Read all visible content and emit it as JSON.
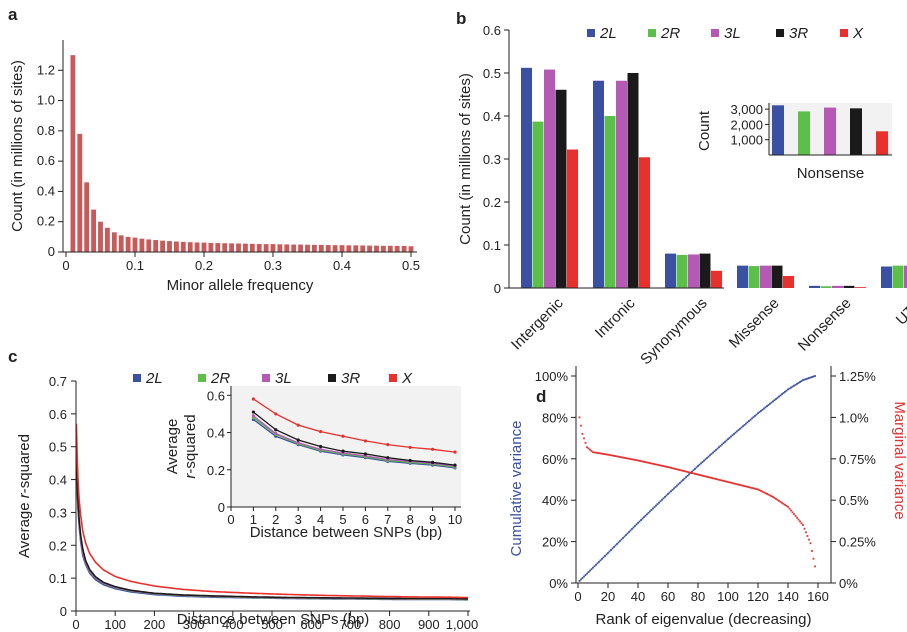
{
  "panels": {
    "a": "a",
    "b": "b",
    "c": "c",
    "d": "d"
  },
  "chart_data": [
    {
      "panel": "a",
      "type": "bar",
      "xlabel": "Minor allele frequency",
      "ylabel": "Count (in millions of sites)",
      "xlim": [
        0,
        0.5
      ],
      "ylim": [
        0,
        1.4
      ],
      "xticks": [
        0,
        0.1,
        0.2,
        0.3,
        0.4,
        0.5
      ],
      "xtick_labels": [
        "0",
        "0.1",
        "0.2",
        "0.3",
        "0.4",
        "0.5"
      ],
      "yticks": [
        0,
        0.2,
        0.4,
        0.6,
        0.8,
        1.0,
        1.2
      ],
      "ytick_labels": [
        "0",
        "0.2",
        "0.4",
        "0.6",
        "0.8",
        "1.0",
        "1.2"
      ],
      "bar_width": 0.007,
      "color": "#c85a5a",
      "x": [
        0.01,
        0.02,
        0.03,
        0.04,
        0.05,
        0.06,
        0.07,
        0.08,
        0.09,
        0.1,
        0.11,
        0.12,
        0.13,
        0.14,
        0.15,
        0.16,
        0.17,
        0.18,
        0.19,
        0.2,
        0.21,
        0.22,
        0.23,
        0.24,
        0.25,
        0.26,
        0.27,
        0.28,
        0.29,
        0.3,
        0.31,
        0.32,
        0.33,
        0.34,
        0.35,
        0.36,
        0.37,
        0.38,
        0.39,
        0.4,
        0.41,
        0.42,
        0.43,
        0.44,
        0.45,
        0.46,
        0.47,
        0.48,
        0.49,
        0.5
      ],
      "values": [
        1.3,
        0.78,
        0.46,
        0.28,
        0.2,
        0.16,
        0.13,
        0.11,
        0.1,
        0.095,
        0.088,
        0.083,
        0.079,
        0.075,
        0.072,
        0.069,
        0.067,
        0.065,
        0.063,
        0.062,
        0.06,
        0.059,
        0.058,
        0.057,
        0.056,
        0.055,
        0.054,
        0.053,
        0.052,
        0.052,
        0.051,
        0.05,
        0.049,
        0.049,
        0.048,
        0.047,
        0.047,
        0.046,
        0.045,
        0.045,
        0.044,
        0.044,
        0.043,
        0.042,
        0.042,
        0.041,
        0.041,
        0.04,
        0.04,
        0.038
      ]
    },
    {
      "panel": "b",
      "type": "bar",
      "xlabel": "",
      "ylabel": "Count (in millions of sites)",
      "ylim": [
        0,
        0.6
      ],
      "yticks": [
        0,
        0.1,
        0.2,
        0.3,
        0.4,
        0.5,
        0.6
      ],
      "ytick_labels": [
        "0",
        "0.1",
        "0.2",
        "0.3",
        "0.4",
        "0.5",
        "0.6"
      ],
      "categories": [
        "Intergenic",
        "Intronic",
        "Synonymous",
        "Missense",
        "Nonsense",
        "UTR"
      ],
      "series": [
        {
          "name": "2L",
          "color": "#3b4fa3",
          "values": [
            0.512,
            0.482,
            0.08,
            0.052,
            0.005,
            0.05
          ]
        },
        {
          "name": "2R",
          "color": "#5cbf4a",
          "values": [
            0.387,
            0.4,
            0.077,
            0.051,
            0.004,
            0.052
          ]
        },
        {
          "name": "3L",
          "color": "#b659b6",
          "values": [
            0.508,
            0.482,
            0.078,
            0.052,
            0.005,
            0.052
          ]
        },
        {
          "name": "3R",
          "color": "#1a1a1a",
          "values": [
            0.461,
            0.5,
            0.08,
            0.052,
            0.005,
            0.056
          ]
        },
        {
          "name": "X",
          "color": "#e8302d",
          "values": [
            0.322,
            0.304,
            0.04,
            0.028,
            0.002,
            0.031
          ]
        }
      ],
      "inset": {
        "type": "bar",
        "xlabel": "Nonsense",
        "ylabel": "Count",
        "ylim": [
          0,
          3400
        ],
        "yticks": [
          1000,
          2000,
          3000
        ],
        "ytick_labels": [
          "1,000",
          "2,000",
          "3,000"
        ],
        "values": [
          3250,
          2850,
          3100,
          3050,
          1550
        ]
      }
    },
    {
      "panel": "c",
      "type": "line",
      "xlabel": "Distance between SNPs (bp)",
      "ylabel_pre": "Average ",
      "ylabel_it": "r",
      "ylabel_post": "-squared",
      "xlim": [
        0,
        1000
      ],
      "ylim": [
        0,
        0.7
      ],
      "xticks": [
        0,
        100,
        200,
        300,
        400,
        500,
        600,
        700,
        800,
        900,
        1000
      ],
      "xtick_labels": [
        "0",
        "100",
        "200",
        "300",
        "400",
        "500",
        "600",
        "700",
        "800",
        "900",
        "1,000"
      ],
      "yticks": [
        0,
        0.1,
        0.2,
        0.3,
        0.4,
        0.5,
        0.6,
        0.7
      ],
      "ytick_labels": [
        "0",
        "0.1",
        "0.2",
        "0.3",
        "0.4",
        "0.5",
        "0.6",
        "0.7"
      ],
      "x": [
        1,
        3,
        5,
        8,
        12,
        17,
        25,
        35,
        50,
        70,
        100,
        140,
        200,
        270,
        350,
        450,
        550,
        650,
        750,
        850,
        950,
        1000
      ],
      "series": [
        {
          "name": "2L",
          "color": "#3b4fa3",
          "values": [
            0.47,
            0.37,
            0.31,
            0.26,
            0.21,
            0.17,
            0.14,
            0.115,
            0.095,
            0.08,
            0.068,
            0.058,
            0.05,
            0.045,
            0.042,
            0.04,
            0.038,
            0.037,
            0.036,
            0.035,
            0.035,
            0.034
          ]
        },
        {
          "name": "2R",
          "color": "#5cbf4a",
          "values": [
            0.48,
            0.38,
            0.32,
            0.27,
            0.22,
            0.18,
            0.145,
            0.12,
            0.1,
            0.084,
            0.071,
            0.061,
            0.052,
            0.047,
            0.044,
            0.041,
            0.039,
            0.038,
            0.037,
            0.036,
            0.036,
            0.035
          ]
        },
        {
          "name": "3L",
          "color": "#b659b6",
          "values": [
            0.49,
            0.385,
            0.325,
            0.27,
            0.22,
            0.18,
            0.147,
            0.122,
            0.101,
            0.085,
            0.072,
            0.062,
            0.053,
            0.048,
            0.045,
            0.042,
            0.04,
            0.039,
            0.038,
            0.037,
            0.037,
            0.036
          ]
        },
        {
          "name": "3R",
          "color": "#1a1a1a",
          "values": [
            0.51,
            0.4,
            0.335,
            0.28,
            0.23,
            0.19,
            0.152,
            0.126,
            0.104,
            0.087,
            0.074,
            0.063,
            0.054,
            0.049,
            0.046,
            0.043,
            0.041,
            0.04,
            0.039,
            0.038,
            0.038,
            0.037
          ]
        },
        {
          "name": "X",
          "color": "#e8302d",
          "values": [
            0.57,
            0.47,
            0.4,
            0.34,
            0.29,
            0.245,
            0.205,
            0.175,
            0.148,
            0.125,
            0.105,
            0.09,
            0.076,
            0.066,
            0.059,
            0.054,
            0.05,
            0.047,
            0.045,
            0.043,
            0.042,
            0.041
          ]
        }
      ],
      "inset": {
        "type": "line",
        "xlabel": "Distance between SNPs (bp)",
        "ylabel_line1": "Average",
        "ylabel_it": "r",
        "ylabel_line2_post": "-squared",
        "xlim": [
          0,
          10
        ],
        "ylim": [
          0,
          0.65
        ],
        "xticks": [
          0,
          1,
          2,
          3,
          4,
          5,
          6,
          7,
          8,
          9,
          10
        ],
        "yticks": [
          0,
          0.2,
          0.4,
          0.6
        ],
        "ytick_labels": [
          "0",
          "0.2",
          "0.4",
          "0.6"
        ],
        "x": [
          1,
          2,
          3,
          4,
          5,
          6,
          7,
          8,
          9,
          10
        ],
        "series": [
          {
            "name": "2L",
            "values": [
              0.47,
              0.38,
              0.335,
              0.3,
              0.28,
              0.265,
              0.245,
              0.235,
              0.225,
              0.21
            ]
          },
          {
            "name": "2R",
            "values": [
              0.48,
              0.39,
              0.34,
              0.305,
              0.285,
              0.27,
              0.25,
              0.24,
              0.23,
              0.215
            ]
          },
          {
            "name": "3L",
            "values": [
              0.49,
              0.395,
              0.345,
              0.31,
              0.29,
              0.275,
              0.255,
              0.245,
              0.235,
              0.22
            ]
          },
          {
            "name": "3R",
            "values": [
              0.51,
              0.415,
              0.36,
              0.325,
              0.3,
              0.285,
              0.265,
              0.25,
              0.24,
              0.225
            ]
          },
          {
            "name": "X",
            "values": [
              0.58,
              0.5,
              0.44,
              0.405,
              0.38,
              0.355,
              0.335,
              0.32,
              0.31,
              0.295
            ]
          }
        ]
      }
    },
    {
      "panel": "d",
      "type": "scatter",
      "xlabel": "Rank of eigenvalue (decreasing)",
      "ylabel_left": "Cumulative variance",
      "ylabel_right": "Marginal variance",
      "xlim": [
        -2,
        165
      ],
      "xticks": [
        0,
        20,
        40,
        60,
        80,
        100,
        120,
        140,
        160
      ],
      "xtick_labels": [
        "0",
        "20",
        "40",
        "60",
        "80",
        "100",
        "120",
        "140",
        "160"
      ],
      "ylim_left": [
        0,
        100
      ],
      "yticks_left": [
        0,
        20,
        40,
        60,
        80,
        100
      ],
      "ytick_labels_left": [
        "0%",
        "20%",
        "40%",
        "60%",
        "80%",
        "100%"
      ],
      "ylim_right": [
        0,
        1.25
      ],
      "yticks_right": [
        0,
        0.25,
        0.5,
        0.75,
        1.0,
        1.25
      ],
      "ytick_labels_right": [
        "0%",
        "0.25%",
        "0.5%",
        "0.75%",
        "1.0%",
        "1.25%"
      ],
      "n_points": 158,
      "series": [
        {
          "name": "Cumulative variance",
          "color": "#3b4fa3",
          "axis": "left",
          "x": [
            1,
            20,
            40,
            60,
            80,
            100,
            120,
            140,
            150,
            158
          ],
          "values": [
            1.0,
            14.5,
            29.0,
            43.0,
            56.5,
            69.5,
            82.0,
            93.5,
            98.0,
            100.0
          ]
        },
        {
          "name": "Marginal variance",
          "color": "#e8302d",
          "axis": "right",
          "x": [
            1,
            3,
            6,
            10,
            20,
            40,
            60,
            80,
            100,
            120,
            130,
            140,
            150,
            155,
            158
          ],
          "values": [
            1.0,
            0.9,
            0.82,
            0.79,
            0.775,
            0.74,
            0.7,
            0.655,
            0.61,
            0.565,
            0.52,
            0.46,
            0.35,
            0.24,
            0.1
          ]
        }
      ]
    }
  ]
}
